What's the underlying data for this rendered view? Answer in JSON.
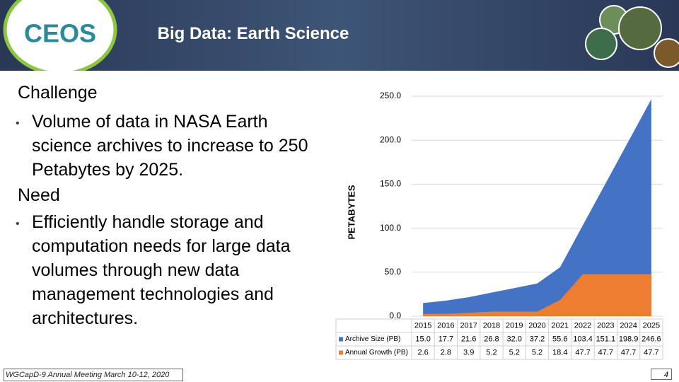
{
  "header": {
    "logo": "CEOS",
    "title": "Big Data: Earth Science"
  },
  "body": [
    {
      "heading": "Challenge",
      "bullets": [
        "Volume of data in NASA Earth science archives to increase to 250 Petabytes by 2025."
      ]
    },
    {
      "heading": "Need",
      "bullets": [
        "Efficiently handle storage and computation needs for large data volumes through new data management technologies and architectures."
      ]
    }
  ],
  "chart_data": {
    "type": "area",
    "y_label": "PETABYTES",
    "categories": [
      "2015",
      "2016",
      "2017",
      "2018",
      "2019",
      "2020",
      "2021",
      "2022",
      "2023",
      "2024",
      "2025"
    ],
    "series": [
      {
        "name": "Archive Size (PB)",
        "color": "#4472c4",
        "values": [
          15.0,
          17.7,
          21.6,
          26.8,
          32.0,
          37.2,
          55.6,
          103.4,
          151.1,
          198.9,
          246.6
        ],
        "value_labels": [
          "15.0",
          "17.7",
          "21.6",
          "26.8",
          "32.0",
          "37.2",
          "55.6",
          "103.4",
          "151.1",
          "198.9",
          "246.6"
        ]
      },
      {
        "name": "Annual Growth (PB)",
        "color": "#ed7d31",
        "values": [
          2.6,
          2.8,
          3.9,
          5.2,
          5.2,
          5.2,
          18.4,
          47.7,
          47.7,
          47.7,
          47.7
        ],
        "value_labels": [
          "2.6",
          "2.8",
          "3.9",
          "5.2",
          "5.2",
          "5.2",
          "18.4",
          "47.7",
          "47.7",
          "47.7",
          "47.7"
        ]
      }
    ],
    "ylim": [
      0,
      250
    ],
    "yticks": [
      {
        "value": 0,
        "label": "0.0"
      },
      {
        "value": 50,
        "label": "50.0"
      },
      {
        "value": 100,
        "label": "100.0"
      },
      {
        "value": 150,
        "label": "150.0"
      },
      {
        "value": 200,
        "label": "200.0"
      },
      {
        "value": 250,
        "label": "250.0"
      }
    ],
    "grid": true
  },
  "footer": {
    "meeting": "WGCapD-9 Annual Meeting March 10-12, 2020",
    "page": "4"
  }
}
